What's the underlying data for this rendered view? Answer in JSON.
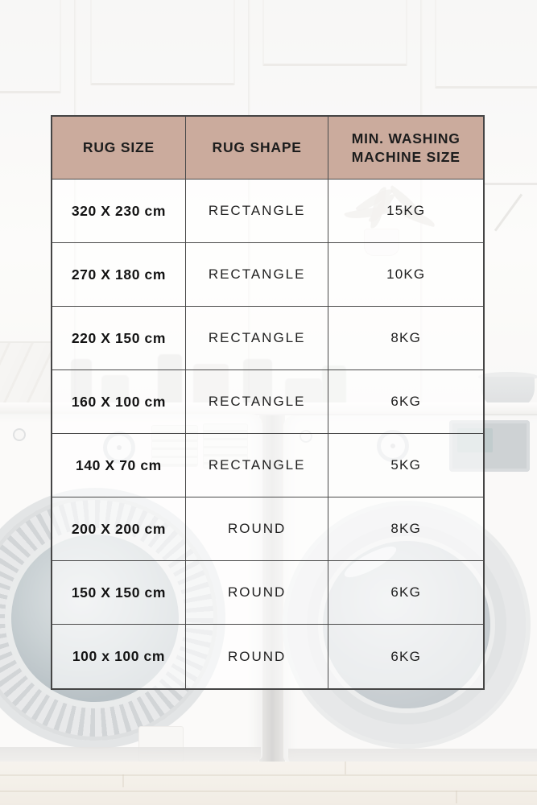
{
  "chart_data": {
    "type": "table",
    "columns": [
      "RUG SIZE",
      "RUG SHAPE",
      "MIN. WASHING MACHINE SIZE"
    ],
    "rows": [
      [
        "320 X 230 cm",
        "RECTANGLE",
        "15KG"
      ],
      [
        "270 X 180 cm",
        "RECTANGLE",
        "10KG"
      ],
      [
        "220 X 150 cm",
        "RECTANGLE",
        "8KG"
      ],
      [
        "160 X 100 cm",
        "RECTANGLE",
        "6KG"
      ],
      [
        "140 X 70 cm",
        "RECTANGLE",
        "5KG"
      ],
      [
        "200 X 200 cm",
        "ROUND",
        "8KG"
      ],
      [
        "150 X 150 cm",
        "ROUND",
        "6KG"
      ],
      [
        "100 x 100 cm",
        "ROUND",
        "6KG"
      ]
    ]
  },
  "colors": {
    "header_bg": "#cbab9d",
    "grid_border": "#4a4a4a",
    "text": "#1d1d1d",
    "cell_bg": "rgba(255,255,255,0.62)"
  }
}
